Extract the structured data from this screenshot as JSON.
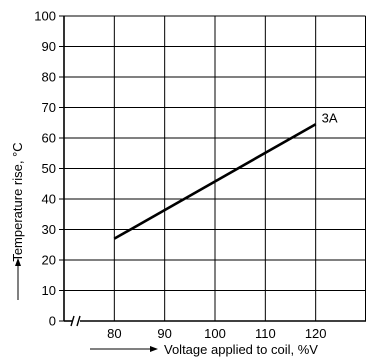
{
  "chart_data": {
    "type": "line",
    "title": "",
    "xlabel": "Voltage applied to coil, %V",
    "ylabel": "Temperature rise, °C",
    "xlim": [
      70,
      130
    ],
    "ylim": [
      0,
      100
    ],
    "x_axis_break": true,
    "x_ticks": [
      "80",
      "90",
      "100",
      "110",
      "120"
    ],
    "y_ticks": [
      "0",
      "10",
      "20",
      "30",
      "40",
      "50",
      "60",
      "70",
      "80",
      "90",
      "100"
    ],
    "grid": true,
    "series": [
      {
        "name": "3A",
        "x": [
          80,
          120
        ],
        "y": [
          27,
          64.5
        ]
      }
    ],
    "colors": {
      "line": "#000000",
      "grid": "#000000"
    }
  }
}
